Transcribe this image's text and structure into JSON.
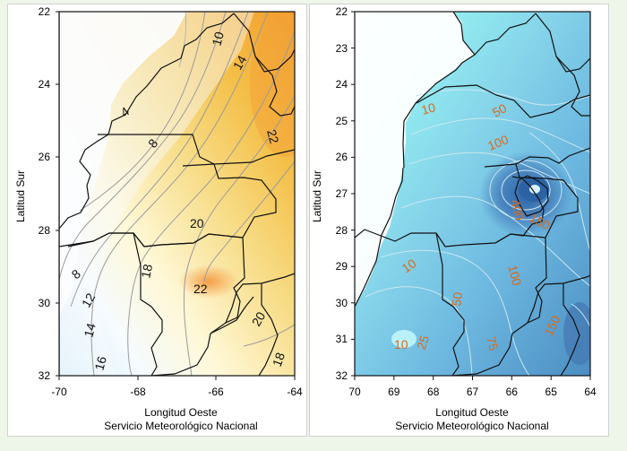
{
  "colors": {
    "page_background": "#eef6ea",
    "panel_background": "#ffffff",
    "left_cold": "#d7eef6",
    "left_mid": "#fff4c8",
    "left_warm": "#f4b842",
    "left_hot": "#f29a2a",
    "right_light": "#96f5f5",
    "right_mid": "#69b6e0",
    "right_deep": "#3f7fb8",
    "left_contour_label": "#111111",
    "right_contour_label": "#d86b1b",
    "border_lines": "#111111"
  },
  "left_panel": {
    "ylabel": "Latitud  Sur",
    "xlabel": "Longitud  Oeste",
    "credit": "Servicio Meteorológico Nacional",
    "yticks": [
      "22",
      "24",
      "26",
      "28",
      "30",
      "32"
    ],
    "xticks": [
      "-70",
      "-68",
      "-66",
      "-64"
    ],
    "contour_labels": [
      "10",
      "14",
      "4",
      "8",
      "22",
      "20",
      "8",
      "12",
      "14",
      "16",
      "18",
      "22",
      "20",
      "18"
    ]
  },
  "right_panel": {
    "ylabel": "Latitud  Sur",
    "xlabel": "Longitud  Oeste",
    "credit": "Servicio Meteorológico Nacional",
    "yticks": [
      "22",
      "23",
      "24",
      "25",
      "26",
      "27",
      "28",
      "29",
      "30",
      "31",
      "32"
    ],
    "xticks": [
      "70",
      "69",
      "68",
      "67",
      "66",
      "65",
      "64"
    ],
    "contour_labels": [
      "10",
      "50",
      "100",
      "400",
      "150",
      "10",
      "50",
      "100",
      "75",
      "10",
      "25",
      "150"
    ]
  }
}
